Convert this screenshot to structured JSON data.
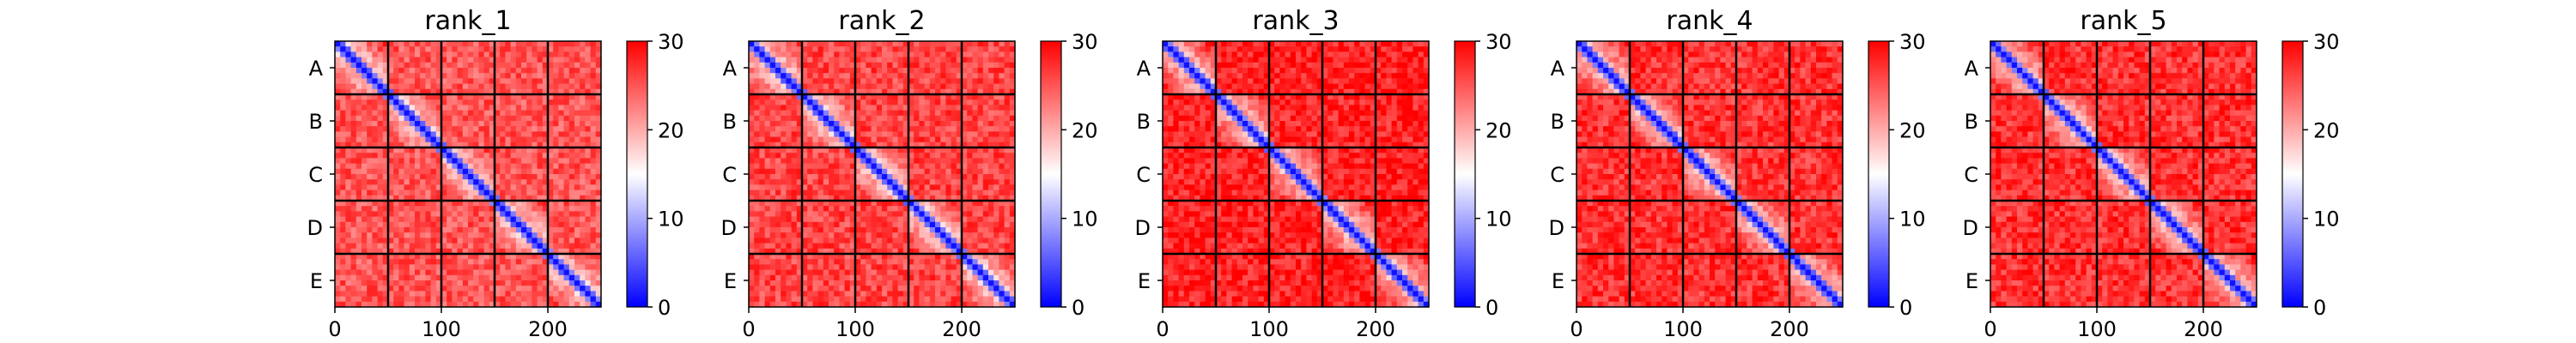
{
  "chart_data": [
    {
      "type": "heatmap",
      "title": "rank_1",
      "row_labels": [
        "A",
        "B",
        "C",
        "D",
        "E"
      ],
      "x_ticks": [
        0,
        100,
        200
      ],
      "xlim": [
        0,
        250
      ],
      "block_size": 50,
      "colorbar": {
        "min": 0,
        "max": 30,
        "ticks": [
          0,
          10,
          20,
          30
        ]
      },
      "colormap": [
        "#0000ff",
        "#ffffff",
        "#ff0000"
      ],
      "off_block_typical": 25,
      "intra_block_typical": 20,
      "grid_lines": true
    },
    {
      "type": "heatmap",
      "title": "rank_2",
      "row_labels": [
        "A",
        "B",
        "C",
        "D",
        "E"
      ],
      "x_ticks": [
        0,
        100,
        200
      ],
      "xlim": [
        0,
        250
      ],
      "block_size": 50,
      "colorbar": {
        "min": 0,
        "max": 30,
        "ticks": [
          0,
          10,
          20,
          30
        ]
      },
      "colormap": [
        "#0000ff",
        "#ffffff",
        "#ff0000"
      ],
      "off_block_typical": 26,
      "intra_block_typical": 20,
      "grid_lines": true
    },
    {
      "type": "heatmap",
      "title": "rank_3",
      "row_labels": [
        "A",
        "B",
        "C",
        "D",
        "E"
      ],
      "x_ticks": [
        0,
        100,
        200
      ],
      "xlim": [
        0,
        250
      ],
      "block_size": 50,
      "colorbar": {
        "min": 0,
        "max": 30,
        "ticks": [
          0,
          10,
          20,
          30
        ]
      },
      "colormap": [
        "#0000ff",
        "#ffffff",
        "#ff0000"
      ],
      "off_block_typical": 28,
      "intra_block_typical": 21,
      "grid_lines": true
    },
    {
      "type": "heatmap",
      "title": "rank_4",
      "row_labels": [
        "A",
        "B",
        "C",
        "D",
        "E"
      ],
      "x_ticks": [
        0,
        100,
        200
      ],
      "xlim": [
        0,
        250
      ],
      "block_size": 50,
      "colorbar": {
        "min": 0,
        "max": 30,
        "ticks": [
          0,
          10,
          20,
          30
        ]
      },
      "colormap": [
        "#0000ff",
        "#ffffff",
        "#ff0000"
      ],
      "off_block_typical": 27,
      "intra_block_typical": 21,
      "grid_lines": true
    },
    {
      "type": "heatmap",
      "title": "rank_5",
      "row_labels": [
        "A",
        "B",
        "C",
        "D",
        "E"
      ],
      "x_ticks": [
        0,
        100,
        200
      ],
      "xlim": [
        0,
        250
      ],
      "block_size": 50,
      "colorbar": {
        "min": 0,
        "max": 30,
        "ticks": [
          0,
          10,
          20,
          30
        ]
      },
      "colormap": [
        "#0000ff",
        "#ffffff",
        "#ff0000"
      ],
      "off_block_typical": 27,
      "intra_block_typical": 21,
      "grid_lines": true
    }
  ]
}
